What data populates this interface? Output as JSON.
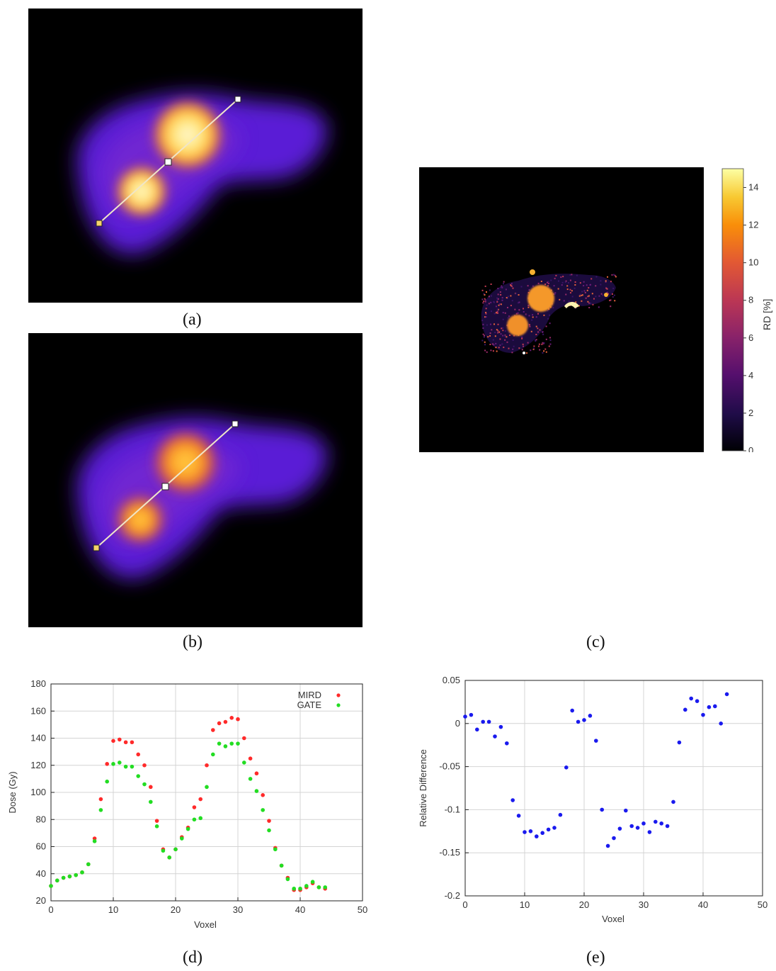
{
  "captions": {
    "a": "(a)",
    "b": "(b)",
    "c": "(c)",
    "d": "(d)",
    "e": "(e)"
  },
  "colorbar": {
    "label": "RD [%]",
    "ticks": [
      "0",
      "2",
      "4",
      "6",
      "8",
      "10",
      "12",
      "14"
    ],
    "range": [
      0,
      15
    ]
  },
  "chart_data": [
    {
      "type": "scatter",
      "xlabel": "Voxel",
      "ylabel": "Dose (Gy)",
      "xlim": [
        0,
        50
      ],
      "ylim": [
        20,
        180
      ],
      "xticks": [
        0,
        10,
        20,
        30,
        40,
        50
      ],
      "yticks": [
        20,
        40,
        60,
        80,
        100,
        120,
        140,
        160,
        180
      ],
      "legend": "top-right",
      "grid": true,
      "series": [
        {
          "name": "MIRD",
          "color": "#ff2a2a",
          "x": [
            0,
            1,
            2,
            3,
            4,
            5,
            6,
            7,
            8,
            9,
            10,
            11,
            12,
            13,
            14,
            15,
            16,
            17,
            18,
            19,
            20,
            21,
            22,
            23,
            24,
            25,
            26,
            27,
            28,
            29,
            30,
            31,
            32,
            33,
            34,
            35,
            36,
            37,
            38,
            39,
            40,
            41,
            42,
            43,
            44
          ],
          "y": [
            31,
            35,
            37,
            38,
            39,
            41,
            47,
            66,
            95,
            121,
            138,
            139,
            137,
            137,
            128,
            120,
            104,
            79,
            58,
            52,
            58,
            67,
            74,
            89,
            95,
            120,
            146,
            151,
            152,
            155,
            154,
            140,
            125,
            114,
            98,
            79,
            59,
            46,
            37,
            28,
            28,
            30,
            33,
            30,
            29
          ]
        },
        {
          "name": "GATE",
          "color": "#22dd22",
          "x": [
            0,
            1,
            2,
            3,
            4,
            5,
            6,
            7,
            8,
            9,
            10,
            11,
            12,
            13,
            14,
            15,
            16,
            17,
            18,
            19,
            20,
            21,
            22,
            23,
            24,
            25,
            26,
            27,
            28,
            29,
            30,
            31,
            32,
            33,
            34,
            35,
            36,
            37,
            38,
            39,
            40,
            41,
            42,
            43,
            44
          ],
          "y": [
            31,
            35,
            37,
            38,
            39,
            41,
            47,
            64,
            87,
            108,
            121,
            122,
            119,
            119,
            112,
            106,
            93,
            75,
            57,
            52,
            58,
            66,
            73,
            80,
            81,
            104,
            128,
            136,
            134,
            136,
            136,
            122,
            110,
            101,
            87,
            72,
            58,
            46,
            36,
            29,
            29,
            31,
            34,
            30,
            30
          ]
        }
      ]
    },
    {
      "type": "scatter",
      "xlabel": "Voxel",
      "ylabel": "Relative Difference",
      "xlim": [
        0,
        50
      ],
      "ylim": [
        -0.2,
        0.05
      ],
      "xticks": [
        0,
        10,
        20,
        30,
        40,
        50
      ],
      "yticks": [
        -0.2,
        -0.15,
        -0.1,
        -0.05,
        0,
        0.05
      ],
      "grid": true,
      "series": [
        {
          "color": "#1a1aee",
          "x": [
            0,
            1,
            2,
            3,
            4,
            5,
            6,
            7,
            8,
            9,
            10,
            11,
            12,
            13,
            14,
            15,
            16,
            17,
            18,
            19,
            20,
            21,
            22,
            23,
            24,
            25,
            26,
            27,
            28,
            29,
            30,
            31,
            32,
            33,
            34,
            35,
            36,
            37,
            38,
            39,
            40,
            41,
            42,
            43,
            44
          ],
          "y": [
            0.008,
            0.01,
            -0.007,
            0.002,
            0.002,
            -0.015,
            -0.004,
            -0.023,
            -0.089,
            -0.107,
            -0.126,
            -0.125,
            -0.131,
            -0.127,
            -0.123,
            -0.121,
            -0.106,
            -0.051,
            0.015,
            0.002,
            0.004,
            0.009,
            -0.02,
            -0.1,
            -0.142,
            -0.133,
            -0.122,
            -0.101,
            -0.119,
            -0.121,
            -0.116,
            -0.126,
            -0.114,
            -0.116,
            -0.119,
            -0.091,
            -0.022,
            0.016,
            0.029,
            0.026,
            0.01,
            0.019,
            0.02,
            0.0,
            0.034
          ]
        }
      ]
    }
  ]
}
